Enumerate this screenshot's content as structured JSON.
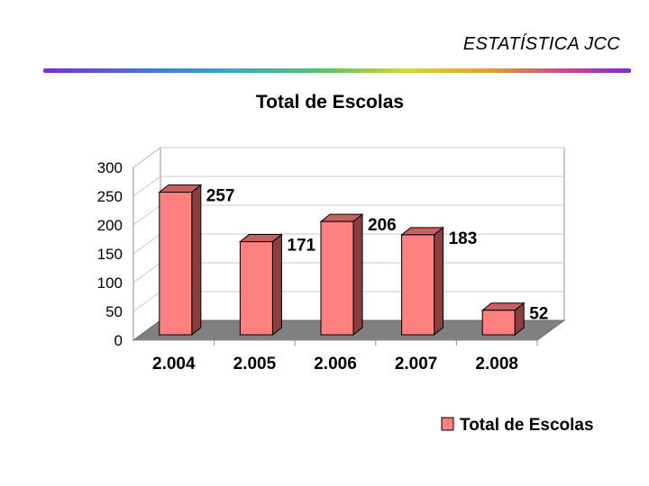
{
  "header": {
    "title": "ESTATÍSTICA JCC"
  },
  "colors": {
    "bar_front": "#ff8080",
    "bar_side": "#8a3e3e",
    "bar_top": "#c86060",
    "floor": "#808080",
    "grid": "#c8c8c8",
    "accent_rule_start": "#7a2fd0"
  },
  "chart_data": {
    "type": "bar",
    "title": "Total de Escolas",
    "categories": [
      "2.004",
      "2.005",
      "2.006",
      "2.007",
      "2.008"
    ],
    "series": [
      {
        "name": "Total de Escolas",
        "values": [
          257,
          171,
          206,
          183,
          52
        ]
      }
    ],
    "data_labels": [
      "257",
      "171",
      "206",
      "183",
      "52"
    ],
    "y_ticks": [
      "0",
      "50",
      "100",
      "150",
      "200",
      "250",
      "300"
    ],
    "ylim": [
      0,
      300
    ],
    "xlabel": "",
    "ylabel": "",
    "grid": true,
    "legend_position": "bottom-right",
    "style": "3d-column"
  }
}
